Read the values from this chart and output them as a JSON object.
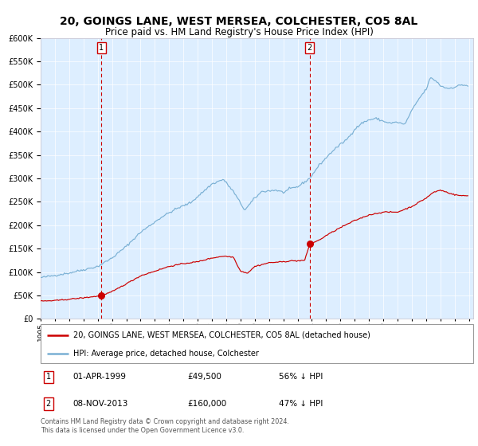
{
  "title": "20, GOINGS LANE, WEST MERSEA, COLCHESTER, CO5 8AL",
  "subtitle": "Price paid vs. HM Land Registry's House Price Index (HPI)",
  "xlim_start": 1995.0,
  "xlim_end": 2025.3,
  "ylim": [
    0,
    600000
  ],
  "yticks": [
    0,
    50000,
    100000,
    150000,
    200000,
    250000,
    300000,
    350000,
    400000,
    450000,
    500000,
    550000,
    600000
  ],
  "sale1_date": 1999.25,
  "sale1_price": 49500,
  "sale2_date": 2013.85,
  "sale2_price": 160000,
  "annotation1": {
    "x": 1999.25,
    "label": "1",
    "text": "01-APR-1999",
    "price": "£49,500",
    "pct": "56% ↓ HPI"
  },
  "annotation2": {
    "x": 2013.85,
    "label": "2",
    "text": "08-NOV-2013",
    "price": "£160,000",
    "pct": "47% ↓ HPI"
  },
  "legend_line1": "20, GOINGS LANE, WEST MERSEA, COLCHESTER, CO5 8AL (detached house)",
  "legend_line2": "HPI: Average price, detached house, Colchester",
  "footer": "Contains HM Land Registry data © Crown copyright and database right 2024.\nThis data is licensed under the Open Government Licence v3.0.",
  "red_color": "#cc0000",
  "blue_color": "#7ab0d4",
  "bg_color": "#ddeeff",
  "title_fontsize": 10,
  "subtitle_fontsize": 8.5,
  "axis_fontsize": 7
}
